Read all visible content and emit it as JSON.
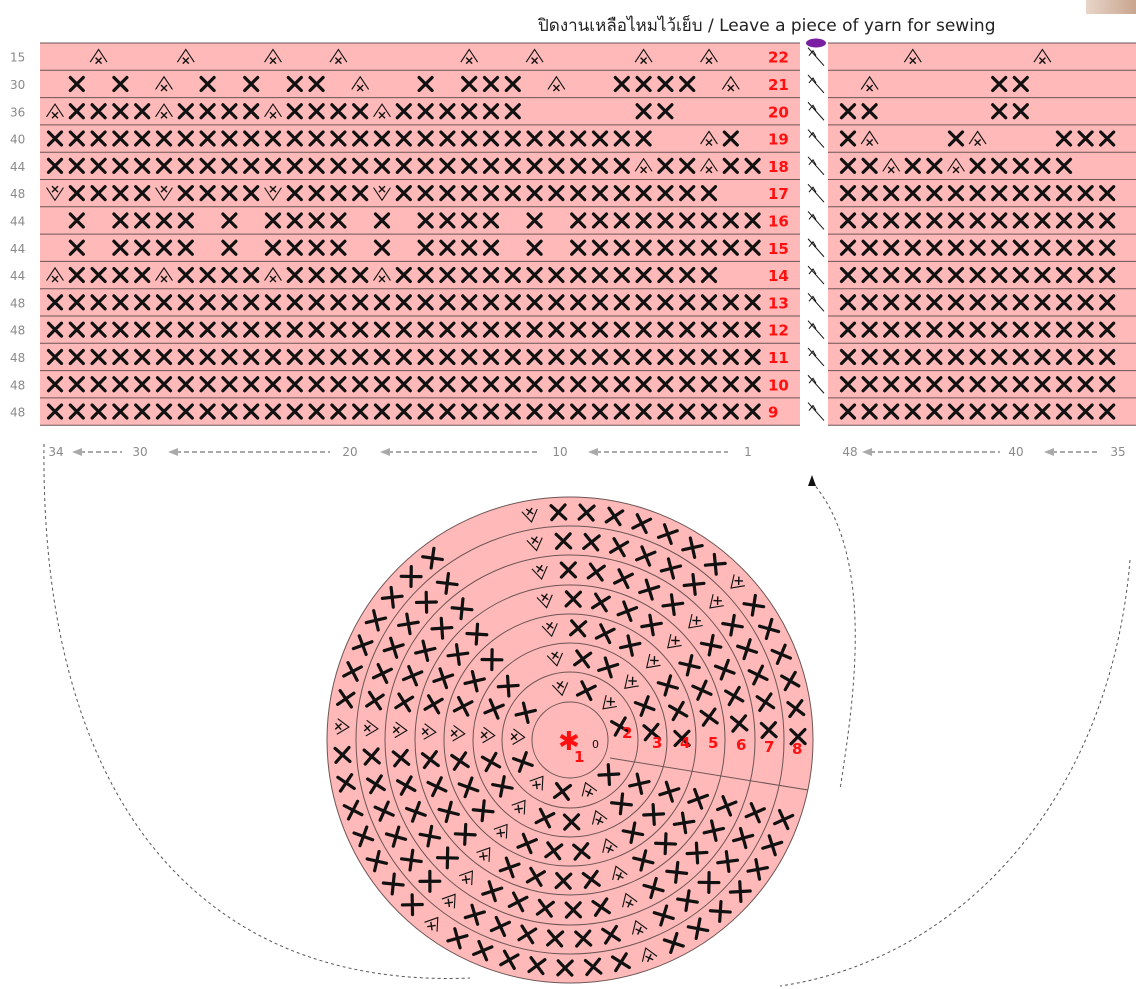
{
  "title": "ปิดงานเหลือไหมไว้เย็บ / Leave a piece of yarn for sewing",
  "colors": {
    "fill": "#ffb9b9",
    "line": "#6d5555",
    "text": "#111111",
    "round_num": "#ff1010",
    "count": "#8a8a8a",
    "marker": "#7a1fa2"
  },
  "rows": [
    {
      "round": "22",
      "count": "15"
    },
    {
      "round": "21",
      "count": "30"
    },
    {
      "round": "20",
      "count": "36"
    },
    {
      "round": "19",
      "count": "40"
    },
    {
      "round": "18",
      "count": "44"
    },
    {
      "round": "17",
      "count": "48"
    },
    {
      "round": "16",
      "count": "44"
    },
    {
      "round": "15",
      "count": "44"
    },
    {
      "round": "14",
      "count": "44"
    },
    {
      "round": "13",
      "count": "48"
    },
    {
      "round": "12",
      "count": "48"
    },
    {
      "round": "11",
      "count": "48"
    },
    {
      "round": "10",
      "count": "48"
    },
    {
      "round": "9",
      "count": "48"
    }
  ],
  "row_symbols": [
    "  A   A   A  A     A  A    A  A  A       A|   A     A     A    A",
    " X X A X X XX A  X XXX A  XXXX A    XX     XX| A     XX    XX A XX",
    "AXXXXAXXXXAXXXXAXXXXXX     XX     XX|XX     XX     XXXXX",
    "XXXXXXXXXXXXXXXXXXXXXXXXXXXX  AX   AX|XA   XA   XXXXX",
    "XXXXXXXXXXXXXXXXXXXXXXXXXXXAXXAXX|XXAXXAXXXXX",
    "VXXXXVXXXXVXXXXVXXXXXXXXXXXXXXX|XXXXXXXXXXXXXX",
    " X XXXX X XXXX X XXXX X XXXXXXXXXXXXXXX|XXXXXXXXXXXXXX",
    " X XXXX X XXXX X XXXX X XXXXXXXXXXXXXXX|XXXXXXXXXXXXXX",
    "AXXXXAXXXXAXXXXAXXXXXXXXXXXXXXX|XXXXXXXXXXXXXX",
    "XXXXXXXXXXXXXXXXXXXXXXXXXXXXXXXXX|XXXXXXXXXXXXXX",
    "XXXXXXXXXXXXXXXXXXXXXXXXXXXXXXXXX|XXXXXXXXXXXXXX",
    "XXXXXXXXXXXXXXXXXXXXXXXXXXXXXXXXX|XXXXXXXXXXXXXX",
    "XXXXXXXXXXXXXXXXXXXXXXXXXXXXXXXXX|XXXXXXXXXXXXXX",
    "XXXXXXXXXXXXXXXXXXXXXXXXXXXXXXXXX|XXXXXXXXXXXXXX"
  ],
  "axis_labels": [
    "34",
    "30",
    "20",
    "10",
    "1",
    "48",
    "40",
    "35"
  ],
  "circle_rounds": [
    "1",
    "2",
    "3",
    "4",
    "5",
    "6",
    "7",
    "8"
  ],
  "center_symbol": "✱",
  "chain_symbol": "0"
}
